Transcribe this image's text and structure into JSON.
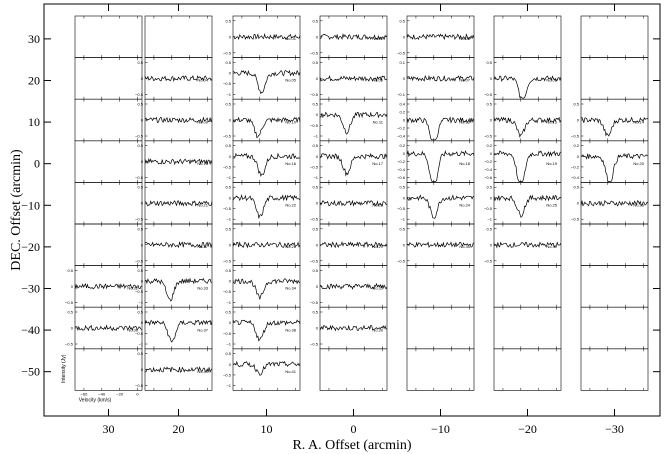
{
  "chart_data": {
    "type": "line",
    "title": "",
    "xlabel": "R. A. Offset (arcmin)",
    "ylabel": "DEC. Offset (arcmin)",
    "x_ticks": [
      "30",
      "20",
      "10",
      "0",
      "−10",
      "−20",
      "−30"
    ],
    "y_ticks": [
      "30",
      "20",
      "10",
      "0",
      "−10",
      "−20",
      "−30",
      "−40",
      "−50"
    ],
    "inset_xlabel": "Velocity (km/s)",
    "inset_ylabel": "Intensity (Jy)",
    "inset_x_ticks": [
      "−60",
      "−40",
      "−20",
      "0"
    ],
    "inset_x_range": [
      -70,
      5
    ],
    "grid": {
      "columns": 8,
      "rows": 9
    },
    "spectra": [
      {
        "id": "No.01",
        "col": 2,
        "row": 0,
        "y_ticks": [
          "0.5",
          "0",
          "−0.5"
        ],
        "absorption": []
      },
      {
        "id": "No.02",
        "col": 3,
        "row": 0,
        "y_ticks": [
          "0.5",
          "0",
          "−0.5"
        ],
        "absorption": []
      },
      {
        "id": "No.03",
        "col": 4,
        "row": 0,
        "y_ticks": [
          "0.5",
          "0",
          "−0.5"
        ],
        "absorption": []
      },
      {
        "id": "No.04",
        "col": 1,
        "row": 1,
        "y_ticks": [
          "0.5",
          "0",
          "−0.5"
        ],
        "absorption": []
      },
      {
        "id": "No.05",
        "col": 2,
        "row": 1,
        "y_ticks": [
          "0.5",
          "0",
          "−0.5",
          "−1"
        ],
        "absorption": [
          {
            "v": -38,
            "depth": -0.9
          }
        ]
      },
      {
        "id": "No.06",
        "col": 3,
        "row": 1,
        "y_ticks": [
          "0.5",
          "0",
          "−0.5"
        ],
        "absorption": []
      },
      {
        "id": "No.07",
        "col": 4,
        "row": 1,
        "y_ticks": [
          "0.1",
          "0",
          "−0.1"
        ],
        "absorption": []
      },
      {
        "id": "No.08",
        "col": 5,
        "row": 1,
        "y_ticks": [
          "0.5",
          "0",
          "−0.5"
        ],
        "absorption": [
          {
            "v": -38,
            "depth": -0.7
          }
        ]
      },
      {
        "id": "No.09",
        "col": 1,
        "row": 2,
        "y_ticks": [
          "0.5",
          "0",
          "−0.5"
        ],
        "absorption": []
      },
      {
        "id": "No.10",
        "col": 2,
        "row": 2,
        "y_ticks": [
          "0.5",
          "0",
          "−0.5"
        ],
        "absorption": [
          {
            "v": -42,
            "depth": -0.5
          }
        ]
      },
      {
        "id": "No.11",
        "col": 3,
        "row": 2,
        "y_ticks": [
          "0.5",
          "0",
          "−0.5",
          "−1"
        ],
        "absorption": [
          {
            "v": -40,
            "depth": -0.8
          }
        ]
      },
      {
        "id": "No.12",
        "col": 4,
        "row": 2,
        "y_ticks": [
          "0.4",
          "0.2",
          "0",
          "−0.2",
          "−0.4"
        ],
        "absorption": [
          {
            "v": -40,
            "depth": -0.6
          }
        ]
      },
      {
        "id": "No.13",
        "col": 5,
        "row": 2,
        "y_ticks": [
          "0.5",
          "0",
          "−0.5"
        ],
        "absorption": [
          {
            "v": -40,
            "depth": -0.5
          }
        ]
      },
      {
        "id": "No.14",
        "col": 6,
        "row": 2,
        "y_ticks": [
          "0.5",
          "0",
          "−0.5"
        ],
        "absorption": [
          {
            "v": -40,
            "depth": -0.5
          }
        ]
      },
      {
        "id": "No.15",
        "col": 1,
        "row": 3,
        "y_ticks": [
          "0.5",
          "0",
          "−0.5"
        ],
        "absorption": []
      },
      {
        "id": "No.16",
        "col": 2,
        "row": 3,
        "y_ticks": [
          "0.5",
          "0",
          "−0.5",
          "−1"
        ],
        "absorption": [
          {
            "v": -38,
            "depth": -0.9
          }
        ]
      },
      {
        "id": "No.17",
        "col": 3,
        "row": 3,
        "y_ticks": [
          "0.5",
          "0",
          "−0.5",
          "−1"
        ],
        "absorption": [
          {
            "v": -40,
            "depth": -0.8
          }
        ]
      },
      {
        "id": "No.18",
        "col": 4,
        "row": 3,
        "y_ticks": [
          "0.2",
          "0",
          "−0.2",
          "−0.4",
          "−0.6"
        ],
        "absorption": [
          {
            "v": -40,
            "depth": -0.9
          }
        ]
      },
      {
        "id": "No.19",
        "col": 5,
        "row": 3,
        "y_ticks": [
          "0.2",
          "0",
          "−0.2",
          "−0.4",
          "−0.6"
        ],
        "absorption": [
          {
            "v": -40,
            "depth": -0.9
          }
        ]
      },
      {
        "id": "No.20",
        "col": 6,
        "row": 3,
        "y_ticks": [
          "0.2",
          "0",
          "−0.2",
          "−0.4"
        ],
        "absorption": [
          {
            "v": -38,
            "depth": -0.5
          }
        ]
      },
      {
        "id": "No.21",
        "col": 1,
        "row": 4,
        "y_ticks": [
          "0.5",
          "0",
          "−0.5"
        ],
        "absorption": []
      },
      {
        "id": "No.22",
        "col": 2,
        "row": 4,
        "y_ticks": [
          "0.5",
          "0",
          "−0.5",
          "−1"
        ],
        "absorption": [
          {
            "v": -40,
            "depth": -0.9
          }
        ]
      },
      {
        "id": "No.23",
        "col": 3,
        "row": 4,
        "y_ticks": [
          "0.5",
          "0",
          "−0.5"
        ],
        "absorption": []
      },
      {
        "id": "No.24",
        "col": 4,
        "row": 4,
        "y_ticks": [
          "0.5",
          "0",
          "−0.5",
          "−1"
        ],
        "absorption": [
          {
            "v": -40,
            "depth": -0.9
          }
        ]
      },
      {
        "id": "No.25",
        "col": 5,
        "row": 4,
        "y_ticks": [
          "0.5",
          "0",
          "−0.5",
          "−1"
        ],
        "absorption": [
          {
            "v": -40,
            "depth": -0.8
          }
        ]
      },
      {
        "id": "No.26",
        "col": 6,
        "row": 4,
        "y_ticks": [
          "0.5",
          "0",
          "−0.5"
        ],
        "absorption": []
      },
      {
        "id": "No.27",
        "col": 1,
        "row": 5,
        "y_ticks": [
          "0.5",
          "0",
          "−0.5"
        ],
        "absorption": []
      },
      {
        "id": "No.28",
        "col": 2,
        "row": 5,
        "y_ticks": [
          "0.5",
          "0",
          "−0.5"
        ],
        "absorption": []
      },
      {
        "id": "No.29",
        "col": 3,
        "row": 5,
        "y_ticks": [
          "0.5",
          "0",
          "−0.5"
        ],
        "absorption": []
      },
      {
        "id": "No.30",
        "col": 4,
        "row": 5,
        "y_ticks": [
          "0.5",
          "0",
          "−0.5"
        ],
        "absorption": []
      },
      {
        "id": "No.31",
        "col": 5,
        "row": 5,
        "y_ticks": [
          "0.5",
          "0",
          "−0.5"
        ],
        "absorption": []
      },
      {
        "id": "No.32",
        "col": 0,
        "row": 6,
        "y_ticks": [
          "0.5",
          "0",
          "−0.5"
        ],
        "absorption": []
      },
      {
        "id": "No.33",
        "col": 1,
        "row": 6,
        "y_ticks": [
          "0.5",
          "0",
          "−0.5",
          "−1"
        ],
        "absorption": [
          {
            "v": -42,
            "depth": -0.9
          }
        ]
      },
      {
        "id": "No.34",
        "col": 2,
        "row": 6,
        "y_ticks": [
          "0.5",
          "0",
          "−0.5",
          "−1"
        ],
        "absorption": [
          {
            "v": -40,
            "depth": -0.8
          }
        ]
      },
      {
        "id": "No.35",
        "col": 3,
        "row": 6,
        "y_ticks": [
          "0.5",
          "0",
          "−0.5"
        ],
        "absorption": []
      },
      {
        "id": "No.36",
        "col": 0,
        "row": 7,
        "y_ticks": [
          "0.5",
          "0",
          "−0.5"
        ],
        "absorption": []
      },
      {
        "id": "No.37",
        "col": 1,
        "row": 7,
        "y_ticks": [
          "0.5",
          "0",
          "−0.5",
          "−1"
        ],
        "absorption": [
          {
            "v": -40,
            "depth": -0.9
          }
        ]
      },
      {
        "id": "No.38",
        "col": 2,
        "row": 7,
        "y_ticks": [
          "0.5",
          "0",
          "−0.5",
          "−1"
        ],
        "absorption": [
          {
            "v": -40,
            "depth": -0.8
          }
        ]
      },
      {
        "id": "No.39",
        "col": 3,
        "row": 7,
        "y_ticks": [
          "0.5",
          "0",
          "−0.5"
        ],
        "absorption": []
      },
      {
        "id": "No.40",
        "col": 1,
        "row": 8,
        "y_ticks": [
          "0.5",
          "0",
          "−0.5"
        ],
        "absorption": []
      },
      {
        "id": "No.41",
        "col": 2,
        "row": 8,
        "y_ticks": [
          "0.5",
          "0",
          "−0.5",
          "−1"
        ],
        "absorption": [
          {
            "v": -40,
            "depth": -0.4
          }
        ]
      }
    ]
  }
}
